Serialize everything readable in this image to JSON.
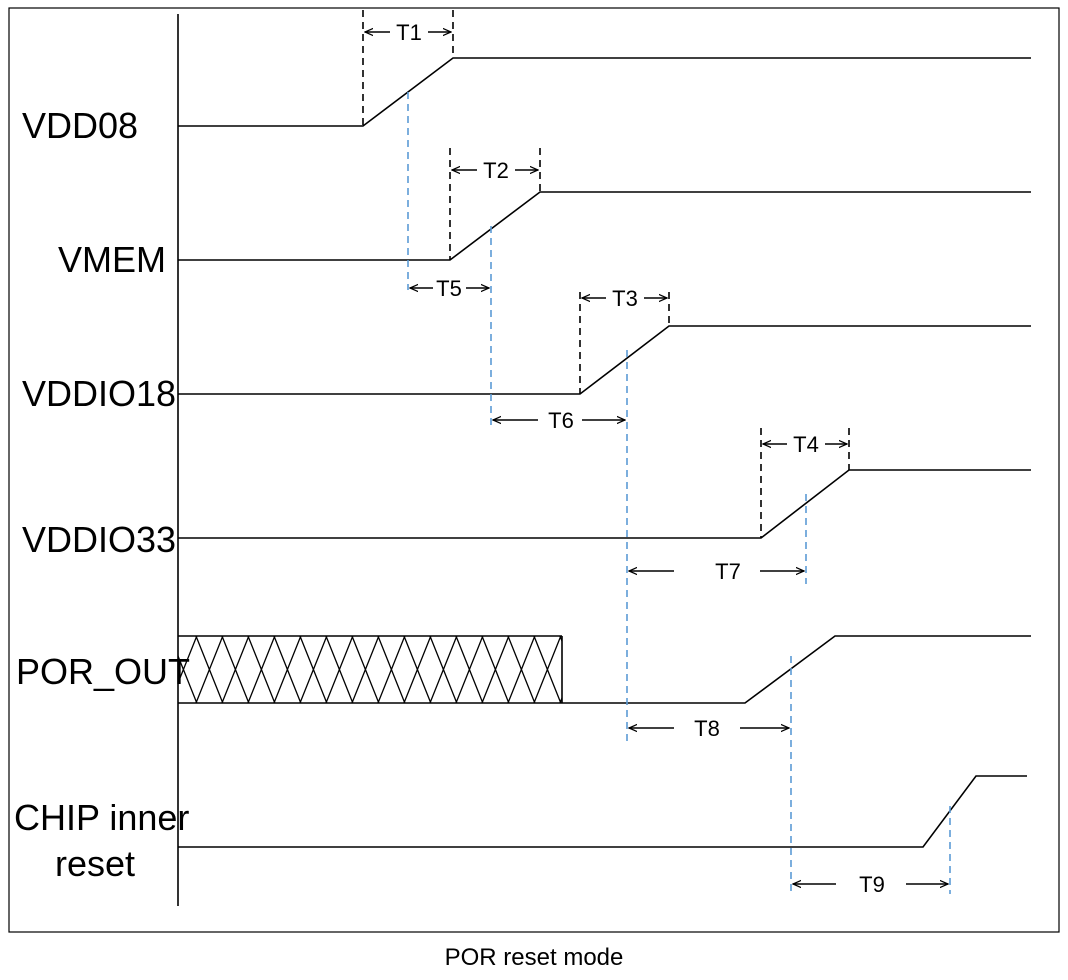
{
  "caption": "POR reset mode",
  "signals": {
    "vdd08": "VDD08",
    "vmem": "VMEM",
    "vddio18": "VDDIO18",
    "vddio33": "VDDIO33",
    "por_out": "POR_OUT",
    "chip_reset_line1": "CHIP inner",
    "chip_reset_line2": "reset"
  },
  "intervals": {
    "t1": "T1",
    "t2": "T2",
    "t3": "T3",
    "t4": "T4",
    "t5": "T5",
    "t6": "T6",
    "t7": "T7",
    "t8": "T8",
    "t9": "T9"
  },
  "colors": {
    "waveform": "#000000",
    "marker_dashes": "#5b9bd5",
    "ramp_dashes": "#000000"
  }
}
